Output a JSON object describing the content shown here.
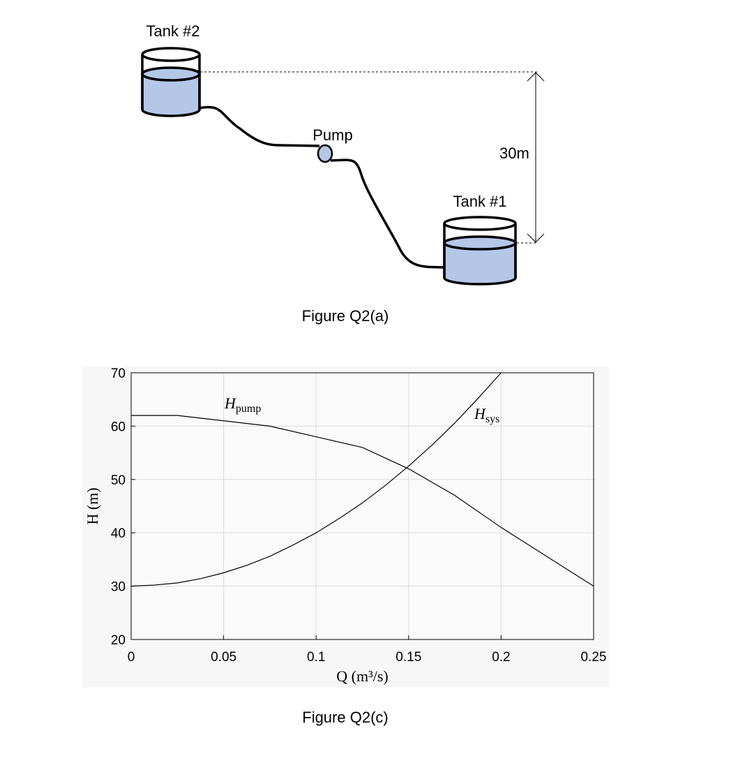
{
  "diagram": {
    "tank2": "Tank #2",
    "tank1": "Tank #1",
    "pump": "Pump",
    "height": "30m",
    "caption": "Figure Q2(a)"
  },
  "chart_data": {
    "type": "line",
    "caption": "Figure Q2(c)",
    "xlabel": "Q (m³/s)",
    "ylabel": "H (m)",
    "xlim": [
      0,
      0.25
    ],
    "xticks": [
      0,
      0.05,
      0.1,
      0.15,
      0.2,
      0.25
    ],
    "ylim": [
      20,
      70
    ],
    "yticks": [
      20,
      30,
      40,
      50,
      60,
      70
    ],
    "grid": true,
    "series": [
      {
        "color": "#000000",
        "x": [
          0,
          0.025,
          0.05,
          0.075,
          0.1,
          0.125,
          0.15,
          0.175,
          0.2,
          0.225,
          0.25
        ],
        "values": [
          62,
          62,
          61,
          60,
          58,
          56,
          52,
          47,
          41,
          35.5,
          30
        ]
      },
      {
        "color": "#000000",
        "x": [
          0,
          0.0125,
          0.025,
          0.0375,
          0.05,
          0.0625,
          0.075,
          0.0875,
          0.1,
          0.1125,
          0.125,
          0.1375,
          0.15,
          0.1625,
          0.175,
          0.1875,
          0.2
        ],
        "values": [
          30,
          30.2,
          30.6,
          31.4,
          32.5,
          33.9,
          35.6,
          37.7,
          40,
          42.7,
          45.6,
          48.9,
          52.5,
          56.4,
          60.6,
          65.2,
          70
        ]
      }
    ],
    "annotations": [
      {
        "text": "H",
        "sub": "pump"
      },
      {
        "text": "H",
        "sub": "sys"
      }
    ]
  }
}
